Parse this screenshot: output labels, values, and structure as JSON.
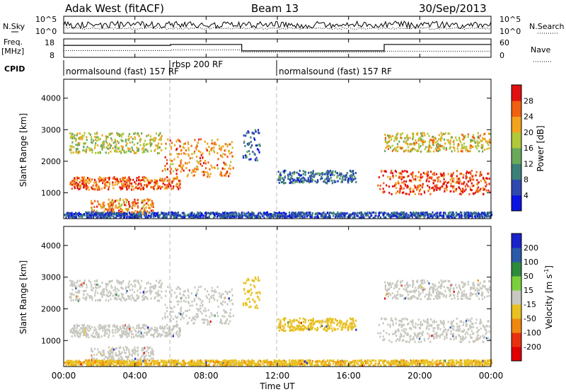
{
  "chart_data": {
    "type": "heatmap",
    "header": {
      "station": "Adak West (fitACF)",
      "beam": "Beam 13",
      "date": "30/Sep/2013"
    },
    "top_panels": {
      "nsky_label": "N.Sky",
      "nsearch_label": "N.Search",
      "noise_ticks": [
        "10^5",
        "10^0"
      ],
      "freq_label": "Freq.",
      "freq_unit": "[MHz]",
      "freq_ticks": [
        "18",
        "8"
      ],
      "nave_label": "Nave",
      "nave_ticks": [
        "60",
        "0"
      ],
      "cpid_label": "CPID",
      "freq_segments": [
        {
          "t0": 0.0,
          "t1": 6.0,
          "freq_mhz": 14.5,
          "nave": 22
        },
        {
          "t0": 6.0,
          "t1": 10.0,
          "freq_mhz": 15.0,
          "nave": 24
        },
        {
          "t0": 10.0,
          "t1": 18.0,
          "freq_mhz": 11.5,
          "nave": 17
        },
        {
          "t0": 18.0,
          "t1": 24.0,
          "freq_mhz": 15.0,
          "nave": 20
        }
      ],
      "cpid_segments": [
        {
          "t0": 0.0,
          "label": "normalsound (fast) 157 RF"
        },
        {
          "t0": 6.0,
          "label": "rbsp 200 RF"
        },
        {
          "t0": 12.0,
          "label": "normalsound (fast) 157 RF"
        }
      ]
    },
    "xlabel": "Time UT",
    "x_ticks": [
      "00:00",
      "04:00",
      "08:00",
      "12:00",
      "16:00",
      "20:00",
      "00:00"
    ],
    "xlim_hours": [
      0,
      24
    ],
    "ylabel": "Slant Range [km]",
    "y_ticks": [
      1000,
      2000,
      3000,
      4000
    ],
    "ylim_km": [
      180,
      4600
    ],
    "power_panel": {
      "colorbar_label": "Power [dB]",
      "colorbar_ticks": [
        4,
        8,
        12,
        16,
        20,
        24,
        28
      ],
      "colorbar_colors": [
        "#0a14e0",
        "#2f48b0",
        "#3b7f7a",
        "#6aa85a",
        "#b0c83a",
        "#f2a21c",
        "#f06010",
        "#e01010"
      ]
    },
    "velocity_panel": {
      "colorbar_label": "Velocity [m s",
      "colorbar_label_sup": "-1",
      "colorbar_label_tail": "]",
      "colorbar_ticks": [
        "200",
        "100",
        "50",
        "15",
        "-15",
        "-50",
        "-100",
        "-200"
      ],
      "colorbar_colors": [
        "#1a22cc",
        "#2a5aa8",
        "#2e8a3e",
        "#7ccf3c",
        "#c8c8c0",
        "#e8c020",
        "#f08810",
        "#e83010",
        "#e00000"
      ]
    },
    "echo_bands": [
      {
        "t0": 0.3,
        "t1": 5.5,
        "r0": 2250,
        "r1": 2900,
        "power_db": 18,
        "velocity": 0
      },
      {
        "t0": 0.3,
        "t1": 6.5,
        "r0": 1100,
        "r1": 1500,
        "power_db": 26,
        "velocity": 0
      },
      {
        "t0": 1.5,
        "t1": 5.0,
        "r0": 300,
        "r1": 800,
        "power_db": 24,
        "velocity": 0
      },
      {
        "t0": 5.5,
        "t1": 9.5,
        "r0": 1500,
        "r1": 2700,
        "power_db": 24,
        "velocity": 0
      },
      {
        "t0": 10.0,
        "t1": 11.0,
        "r0": 2000,
        "r1": 3000,
        "power_db": 8,
        "velocity": -30
      },
      {
        "t0": 12.0,
        "t1": 16.5,
        "r0": 1300,
        "r1": 1700,
        "power_db": 8,
        "velocity": -30
      },
      {
        "t0": 17.6,
        "t1": 23.9,
        "r0": 950,
        "r1": 1700,
        "power_db": 28,
        "velocity": 0
      },
      {
        "t0": 18.0,
        "t1": 23.9,
        "r0": 2300,
        "r1": 2900,
        "power_db": 20,
        "velocity": 0
      },
      {
        "t0": 0.0,
        "t1": 24.0,
        "r0": 200,
        "r1": 380,
        "power_db": 6,
        "velocity": -40
      }
    ]
  }
}
